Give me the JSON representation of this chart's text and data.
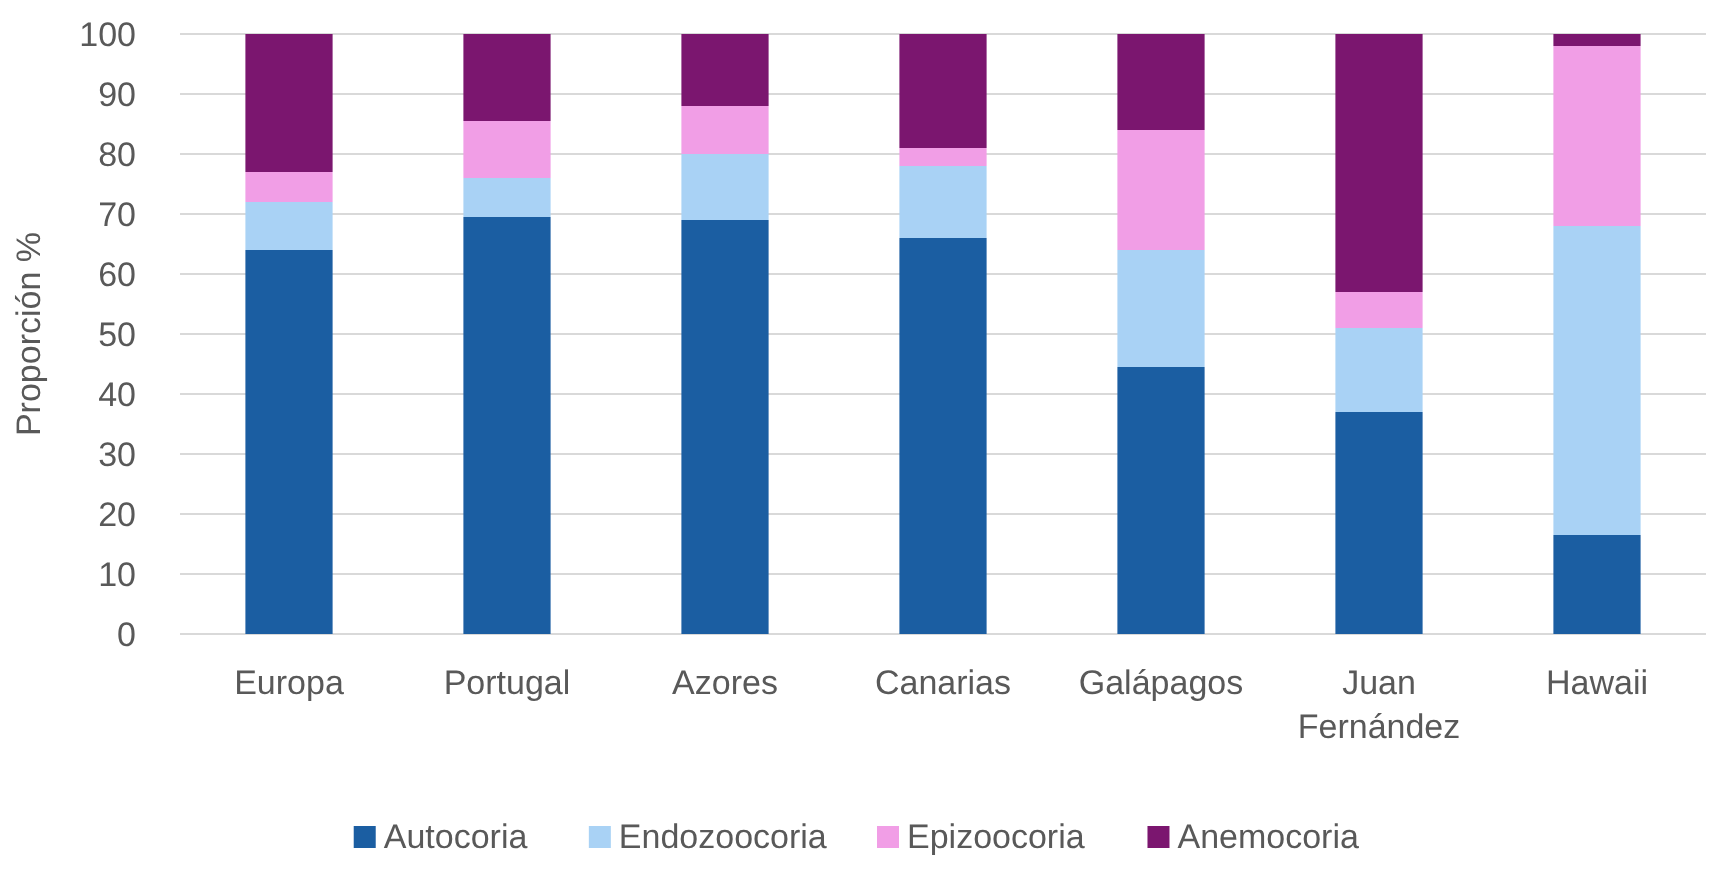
{
  "chart_data": {
    "type": "bar",
    "stacked": true,
    "ylabel": "Proporción %",
    "categories": [
      "Europa",
      "Portugal",
      "Azores",
      "Canarias",
      "Galápagos",
      "Juan Fernández",
      "Hawaii"
    ],
    "series": [
      {
        "name": "Autocoria",
        "color": "#1b5ea2",
        "values": [
          64,
          69.5,
          69,
          66,
          44.5,
          37,
          16.5
        ]
      },
      {
        "name": "Endozoocoria",
        "color": "#a9d2f5",
        "values": [
          8,
          6.5,
          11,
          12,
          19.5,
          14,
          51.5
        ]
      },
      {
        "name": "Epizoocoria",
        "color": "#f19ee6",
        "values": [
          5,
          9.5,
          8,
          3,
          20,
          6,
          30
        ]
      },
      {
        "name": "Anemocoria",
        "color": "#7b166f",
        "values": [
          23,
          14.5,
          12,
          19,
          16,
          43,
          2
        ]
      }
    ],
    "ylim": [
      0,
      100
    ],
    "yticks": [
      0,
      10,
      20,
      30,
      40,
      50,
      60,
      70,
      80,
      90,
      100
    ],
    "grid": "y",
    "legend": "bottom"
  }
}
